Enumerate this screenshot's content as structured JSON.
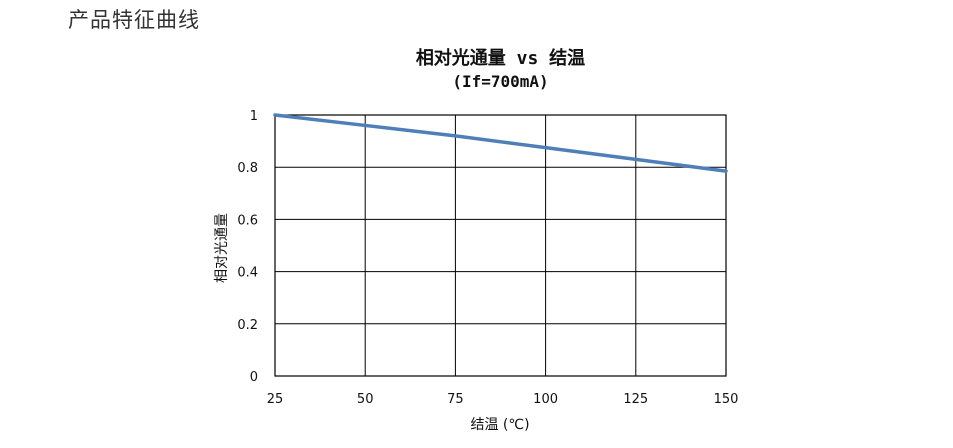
{
  "page": {
    "heading": "产品特征曲线"
  },
  "chart_data": {
    "type": "line",
    "title": "相对光通量 vs 结温",
    "subtitle": "(If=700mA)",
    "xlabel": "结温 (℃)",
    "ylabel": "相对光通量",
    "xlim": [
      25,
      150
    ],
    "ylim": [
      0,
      1
    ],
    "x_ticks": [
      25,
      50,
      75,
      100,
      125,
      150
    ],
    "y_ticks": [
      0,
      0.2,
      0.4,
      0.6,
      0.8,
      1
    ],
    "grid": true,
    "series": [
      {
        "x": [
          25,
          50,
          75,
          100,
          125,
          150
        ],
        "values": [
          1.0,
          0.96,
          0.92,
          0.875,
          0.83,
          0.785
        ],
        "color": "#4f7fb8"
      }
    ]
  }
}
